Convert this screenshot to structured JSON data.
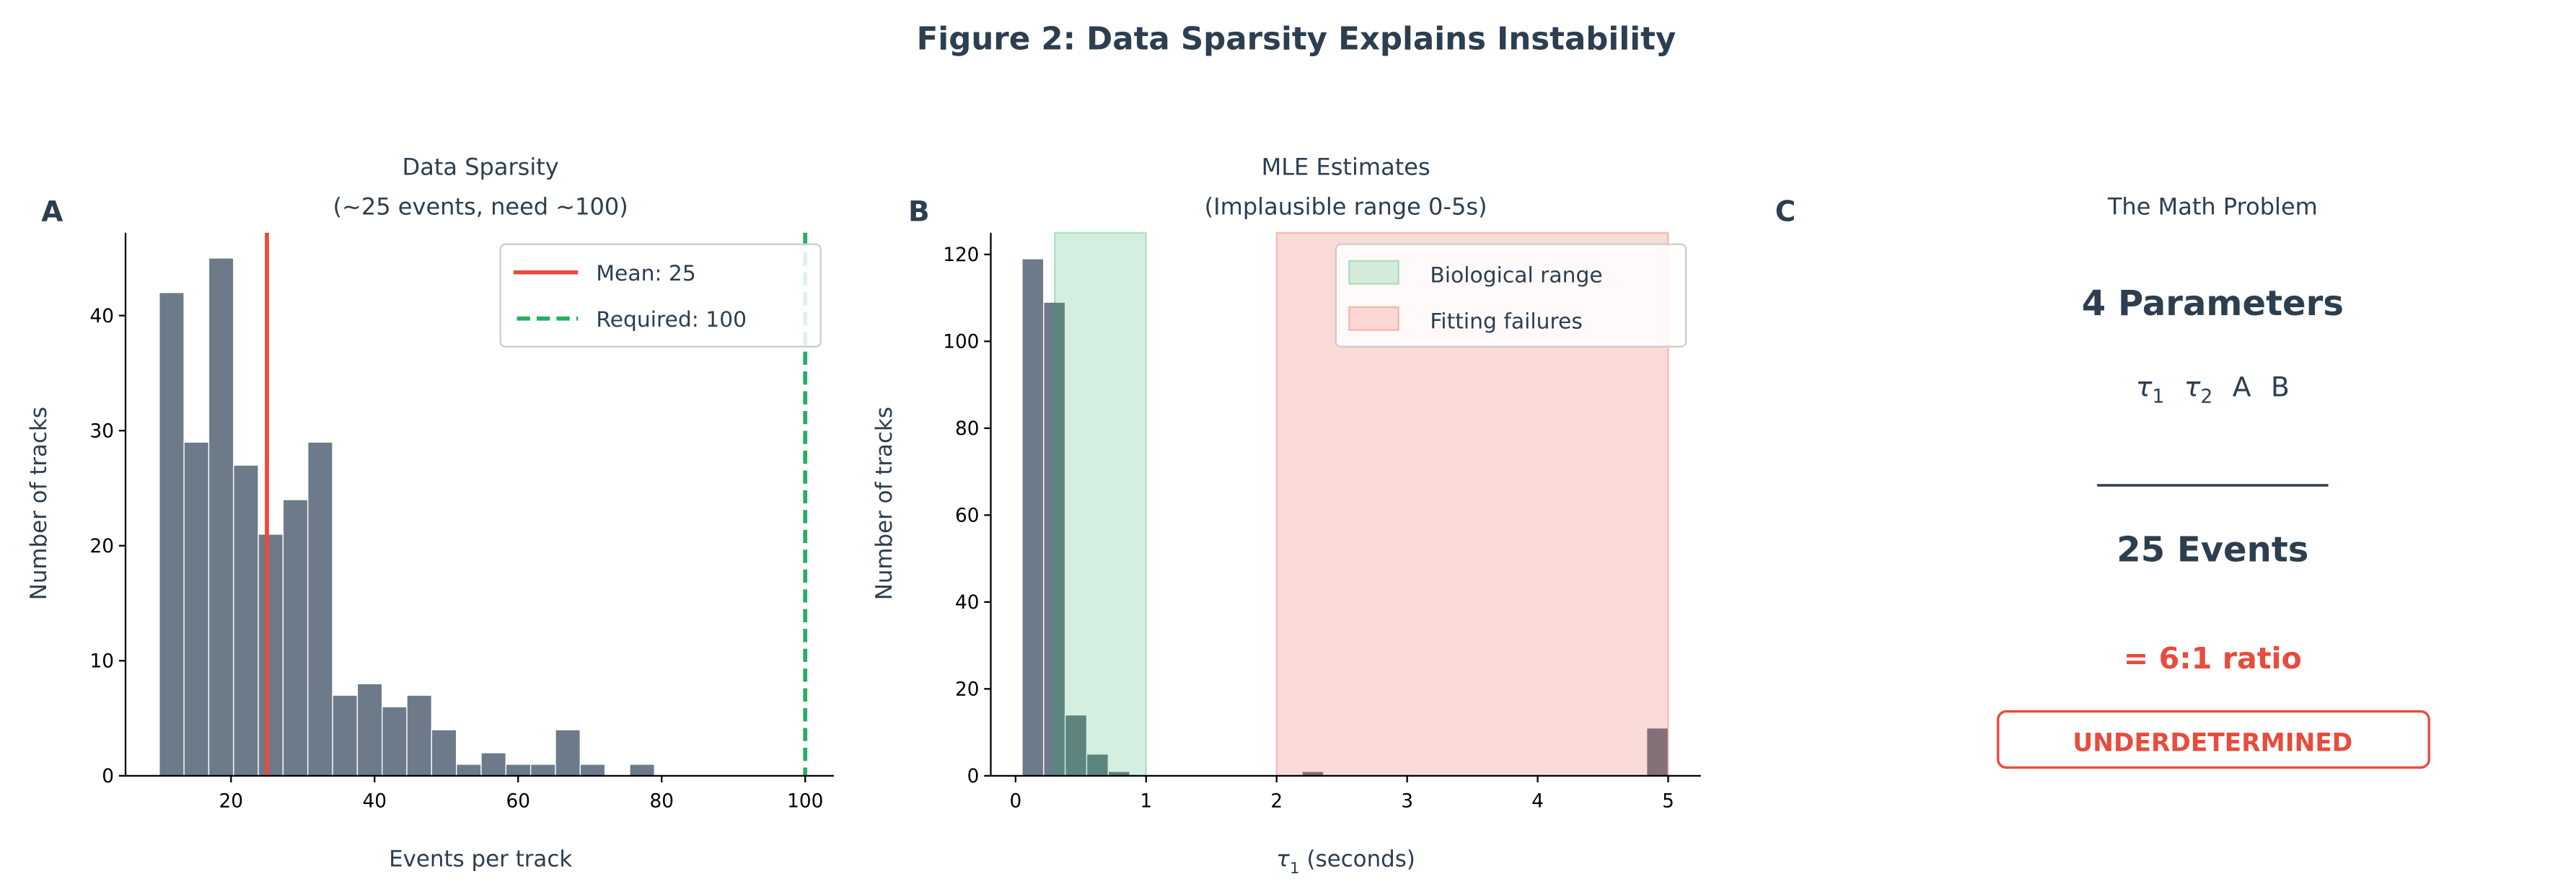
{
  "title": "Figure 2: Data Sparsity Explains Instability",
  "colors": {
    "text": "#2c3e50",
    "bar": "#6c7a89",
    "mean": "#e74c3c",
    "required": "#27ae60",
    "bio": "#27ae60",
    "fail": "#e74c3c"
  },
  "chart_data": [
    {
      "panel": "A",
      "type": "bar",
      "title_line1": "Data Sparsity",
      "title_line2": "(~25 events, need ~100)",
      "xlabel": "Events per track",
      "ylabel": "Number of tracks",
      "bin_start": 10,
      "bin_width": 3.45,
      "values": [
        42,
        29,
        45,
        27,
        21,
        24,
        29,
        7,
        8,
        6,
        7,
        4,
        1,
        2,
        1,
        1,
        4,
        1,
        0,
        1
      ],
      "xlim": [
        5.3,
        104
      ],
      "ylim": [
        0,
        47.2
      ],
      "xticks": [
        "20",
        "40",
        "60",
        "80",
        "100"
      ],
      "yticks": [
        "0",
        "10",
        "20",
        "30",
        "40"
      ],
      "vlines": [
        {
          "name": "Mean: 25",
          "x": 25,
          "style": "solid"
        },
        {
          "name": "Required: 100",
          "x": 100,
          "style": "dashed"
        }
      ],
      "legend_placement": "top-right"
    },
    {
      "panel": "B",
      "type": "bar",
      "title_line1": "MLE Estimates",
      "title_line2": "(Implausible range 0-5s)",
      "xlabel_symbol": "τ",
      "xlabel_sub": "1",
      "xlabel_rest": " (seconds)",
      "ylabel": "Number of tracks",
      "bin_start": 0.05,
      "bin_width": 0.165,
      "values": [
        119,
        109,
        14,
        5,
        1,
        0,
        0,
        0,
        0,
        0,
        0,
        0,
        0,
        1,
        0,
        0,
        0,
        0,
        0,
        0,
        0,
        0,
        0,
        0,
        0,
        0,
        0,
        0,
        0,
        11
      ],
      "xlim": [
        -0.19,
        5.25
      ],
      "ylim": [
        0,
        125
      ],
      "xticks": [
        "0",
        "1",
        "2",
        "3",
        "4",
        "5"
      ],
      "yticks": [
        "0",
        "20",
        "40",
        "60",
        "80",
        "100",
        "120"
      ],
      "spans": [
        {
          "name": "Biological range",
          "from": 0.3,
          "to": 1.0
        },
        {
          "name": "Fitting failures",
          "from": 2.0,
          "to": 5.0
        }
      ],
      "legend_placement": "top-right"
    }
  ],
  "panel_c": {
    "letter": "C",
    "title": "The Math Problem",
    "params_heading": "4 Parameters",
    "params": [
      {
        "sym": "τ",
        "sub": "1"
      },
      {
        "sym": "τ",
        "sub": "2"
      },
      {
        "sym": "A",
        "sub": ""
      },
      {
        "sym": "B",
        "sub": ""
      }
    ],
    "events": "25 Events",
    "ratio": "= 6:1 ratio",
    "badge": "UNDERDETERMINED"
  },
  "letters": {
    "a": "A",
    "b": "B"
  }
}
